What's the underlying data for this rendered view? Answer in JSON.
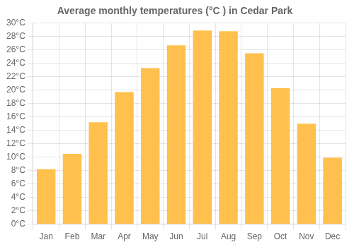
{
  "chart_data": {
    "type": "bar",
    "title": "Average monthly temperatures (°C ) in Cedar Park",
    "categories": [
      "Jan",
      "Feb",
      "Mar",
      "Apr",
      "May",
      "Jun",
      "Jul",
      "Aug",
      "Sep",
      "Oct",
      "Nov",
      "Dec"
    ],
    "values": [
      8.2,
      10.5,
      15.2,
      19.7,
      23.3,
      26.7,
      28.9,
      28.8,
      25.5,
      20.3,
      15.0,
      9.9
    ],
    "color": "#FFC04D",
    "ylim": [
      0,
      30
    ],
    "yticks": [
      {
        "value": 0,
        "label": "0°C"
      },
      {
        "value": 2,
        "label": "2°C"
      },
      {
        "value": 4,
        "label": "4°C"
      },
      {
        "value": 6,
        "label": "6°C"
      },
      {
        "value": 8,
        "label": "8°C"
      },
      {
        "value": 10,
        "label": "10°C"
      },
      {
        "value": 12,
        "label": "12°C"
      },
      {
        "value": 14,
        "label": "14°C"
      },
      {
        "value": 16,
        "label": "16°C"
      },
      {
        "value": 18,
        "label": "18°C"
      },
      {
        "value": 20,
        "label": "20°C"
      },
      {
        "value": 22,
        "label": "22°C"
      },
      {
        "value": 24,
        "label": "24°C"
      },
      {
        "value": 26,
        "label": "26°C"
      },
      {
        "value": 28,
        "label": "28°C"
      },
      {
        "value": 30,
        "label": "30°C"
      }
    ],
    "grid": true
  }
}
